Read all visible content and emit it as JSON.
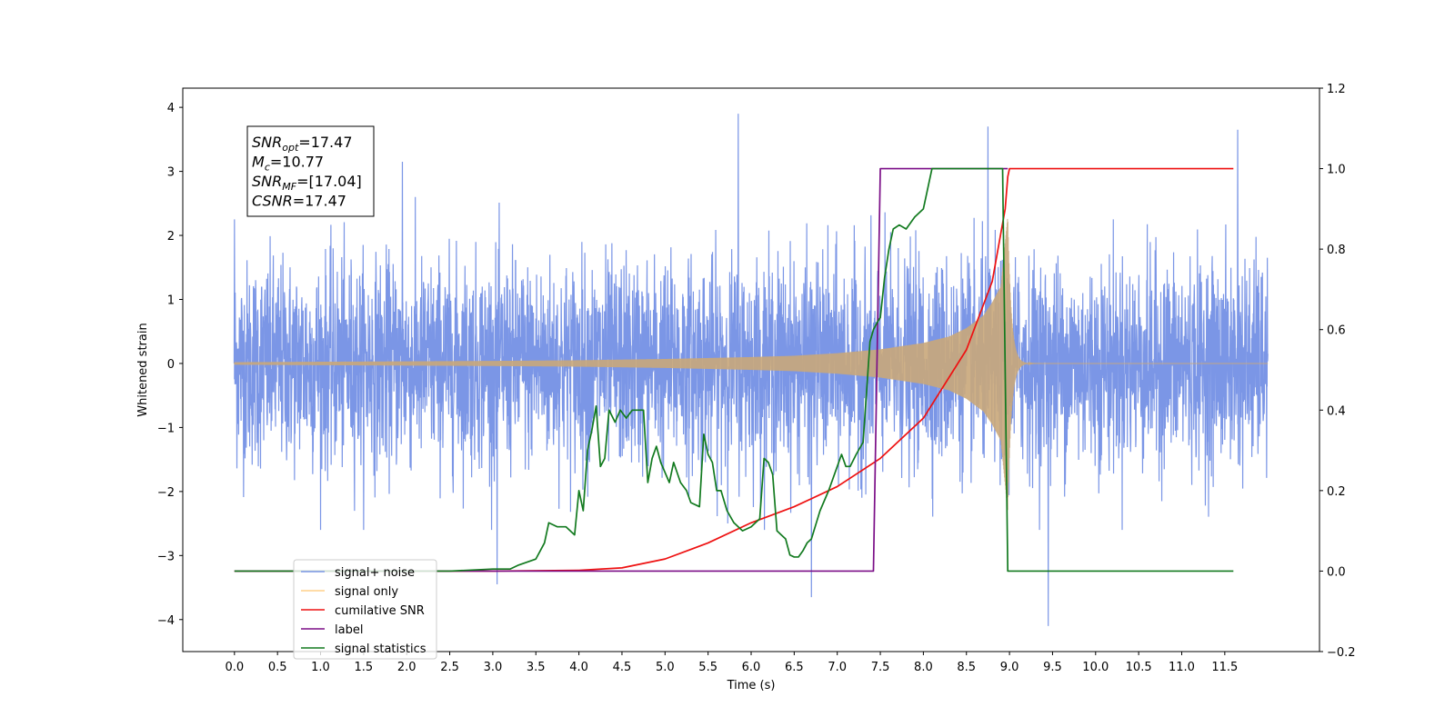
{
  "chart_data": {
    "type": "line",
    "xlabel": "Time (s)",
    "ylabel": "Whitened strain",
    "xlim": [
      -0.6,
      12.6
    ],
    "ylim": [
      -4.5,
      4.3
    ],
    "y2lim": [
      -0.2,
      1.2
    ],
    "x_ticks": [
      0.0,
      0.5,
      1.0,
      1.5,
      2.0,
      2.5,
      3.0,
      3.5,
      4.0,
      4.5,
      5.0,
      5.5,
      6.0,
      6.5,
      7.0,
      7.5,
      8.0,
      8.5,
      9.0,
      9.5,
      10.0,
      10.5,
      11.0,
      11.5
    ],
    "x_tick_labels": [
      "0.0",
      "0.5",
      "1.0",
      "1.5",
      "2.0",
      "2.5",
      "3.0",
      "3.5",
      "4.0",
      "4.5",
      "5.0",
      "5.5",
      "6.0",
      "6.5",
      "7.0",
      "7.5",
      "8.0",
      "8.5",
      "9.0",
      "9.5",
      "10.0",
      "10.5",
      "11.0",
      "11.5"
    ],
    "y_ticks": [
      -4,
      -3,
      -2,
      -1,
      0,
      1,
      2,
      3,
      4
    ],
    "y_tick_labels": [
      "−4",
      "−3",
      "−2",
      "−1",
      "0",
      "1",
      "2",
      "3",
      "4"
    ],
    "y2_ticks": [
      -0.2,
      0.0,
      0.2,
      0.4,
      0.6,
      0.8,
      1.0,
      1.2
    ],
    "y2_tick_labels": [
      "−0.2",
      "0.0",
      "0.2",
      "0.4",
      "0.6",
      "0.8",
      "1.0",
      "1.2"
    ],
    "grid": false,
    "legend_position": "lower-left",
    "annotation": {
      "lines": [
        {
          "var": "SNR",
          "sub": "opt",
          "value": "=17.47"
        },
        {
          "var": "M",
          "sub": "c",
          "value": "=10.77"
        },
        {
          "var": "SNR",
          "sub": "MF",
          "value": "=[17.04]"
        },
        {
          "var": "CSNR",
          "sub": "",
          "value": "=17.47"
        }
      ]
    },
    "series": [
      {
        "name": "signal+ noise",
        "axis": "left",
        "color": "#7b96e6",
        "style": "noise",
        "x_range": [
          0.0,
          12.0
        ],
        "typical_amplitude": [
          -1.75,
          1.75
        ],
        "peaks": [
          [
            0.0,
            2.25
          ],
          [
            1.95,
            3.15
          ],
          [
            5.85,
            3.9
          ],
          [
            8.75,
            3.7
          ],
          [
            11.65,
            3.65
          ],
          [
            9.45,
            -4.1
          ],
          [
            6.7,
            -3.65
          ],
          [
            3.05,
            -3.45
          ]
        ]
      },
      {
        "name": "signal only",
        "axis": "left",
        "color": "#c9a77a",
        "style": "chirp",
        "x_range": [
          0.0,
          12.0
        ],
        "merger_time": 8.98,
        "envelope": {
          "x": [
            0.0,
            3.0,
            4.0,
            5.0,
            6.0,
            6.5,
            7.0,
            7.5,
            8.0,
            8.3,
            8.5,
            8.7,
            8.8,
            8.9,
            8.98
          ],
          "y": [
            0.02,
            0.04,
            0.05,
            0.07,
            0.1,
            0.12,
            0.16,
            0.22,
            0.32,
            0.42,
            0.55,
            0.75,
            0.95,
            1.2,
            2.3
          ]
        }
      },
      {
        "name": "cumilative SNR",
        "axis": "right",
        "color": "#ee1111",
        "x": [
          0.0,
          3.0,
          4.0,
          4.5,
          5.0,
          5.5,
          6.0,
          6.5,
          7.0,
          7.5,
          8.0,
          8.5,
          8.8,
          8.95,
          8.98,
          9.0,
          11.6
        ],
        "y": [
          0.0,
          0.0,
          0.002,
          0.008,
          0.03,
          0.07,
          0.12,
          0.16,
          0.21,
          0.28,
          0.38,
          0.55,
          0.72,
          0.9,
          0.98,
          1.0,
          1.0
        ]
      },
      {
        "name": "label",
        "axis": "right",
        "color": "#7b0e87",
        "x": [
          0.0,
          7.42,
          7.5,
          8.98,
          8.98
        ],
        "y": [
          0.0,
          0.0,
          1.0,
          1.0,
          1.0
        ]
      },
      {
        "name": "signal statistics",
        "axis": "right",
        "color": "#127a1f",
        "x": [
          0.0,
          2.5,
          3.0,
          3.2,
          3.3,
          3.5,
          3.6,
          3.65,
          3.75,
          3.85,
          3.95,
          4.0,
          4.05,
          4.1,
          4.15,
          4.2,
          4.25,
          4.3,
          4.35,
          4.42,
          4.48,
          4.55,
          4.62,
          4.7,
          4.75,
          4.8,
          4.85,
          4.9,
          4.95,
          5.05,
          5.1,
          5.18,
          5.25,
          5.3,
          5.4,
          5.45,
          5.5,
          5.55,
          5.6,
          5.65,
          5.72,
          5.8,
          5.9,
          6.0,
          6.05,
          6.1,
          6.15,
          6.2,
          6.25,
          6.3,
          6.35,
          6.4,
          6.45,
          6.5,
          6.55,
          6.6,
          6.65,
          6.7,
          6.8,
          6.9,
          7.0,
          7.05,
          7.1,
          7.15,
          7.22,
          7.3,
          7.38,
          7.42,
          7.47,
          7.5,
          7.55,
          7.6,
          7.65,
          7.72,
          7.8,
          7.9,
          8.0,
          8.05,
          8.1,
          8.3,
          8.6,
          8.88,
          8.92,
          8.98,
          9.0,
          9.05,
          9.5,
          11.6
        ],
        "y": [
          0.0,
          0.0,
          0.005,
          0.005,
          0.015,
          0.03,
          0.07,
          0.12,
          0.11,
          0.11,
          0.09,
          0.2,
          0.15,
          0.3,
          0.35,
          0.41,
          0.26,
          0.28,
          0.4,
          0.37,
          0.4,
          0.38,
          0.4,
          0.4,
          0.4,
          0.22,
          0.28,
          0.31,
          0.27,
          0.22,
          0.27,
          0.22,
          0.2,
          0.17,
          0.16,
          0.34,
          0.29,
          0.27,
          0.2,
          0.2,
          0.15,
          0.12,
          0.1,
          0.11,
          0.12,
          0.13,
          0.28,
          0.27,
          0.24,
          0.1,
          0.09,
          0.08,
          0.04,
          0.035,
          0.035,
          0.05,
          0.07,
          0.08,
          0.15,
          0.2,
          0.26,
          0.29,
          0.26,
          0.26,
          0.29,
          0.32,
          0.57,
          0.6,
          0.62,
          0.63,
          0.73,
          0.8,
          0.85,
          0.86,
          0.85,
          0.88,
          0.9,
          0.95,
          1.0,
          1.0,
          1.0,
          1.0,
          1.0,
          0.0,
          0.0,
          0.0,
          0.0,
          0.0
        ]
      }
    ]
  }
}
